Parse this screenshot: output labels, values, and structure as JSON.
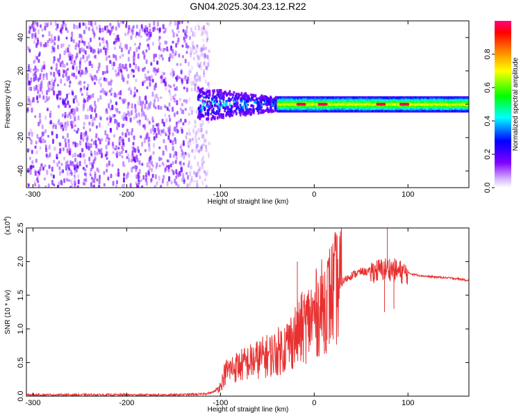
{
  "title": "GN04.2025.304.23.12.R22",
  "chart_data": [
    {
      "type": "heatmap",
      "name": "spectrogram",
      "xlabel": "Height of straight line (km)",
      "ylabel": "Frequency (Hz)",
      "xlim": [
        -307,
        165
      ],
      "ylim": [
        -50,
        50
      ],
      "xticks": [
        -300,
        -200,
        -100,
        0,
        100
      ],
      "xtick_labels": [
        "-300",
        "-200",
        "-100",
        "0",
        "100"
      ],
      "yticks": [
        -40,
        -20,
        0,
        20,
        40
      ],
      "ytick_labels": [
        "-40",
        "-20",
        "0",
        "20",
        "40"
      ],
      "colorbar": {
        "label": "Normalized spectral amplitude",
        "range": [
          0,
          1
        ],
        "ticks": [
          0.0,
          0.2,
          0.4,
          0.6,
          0.8
        ],
        "tick_labels": [
          "0.0",
          "0.2",
          "0.4",
          "0.6",
          "0.8"
        ],
        "colormap": [
          "#ffffff",
          "#8000ff",
          "#0000ff",
          "#00ffff",
          "#00ff00",
          "#ffff00",
          "#ff8000",
          "#ff0000",
          "#ff0080"
        ]
      },
      "regions": [
        {
          "description": "broadband noise",
          "x_range": [
            -307,
            -125
          ],
          "freq_range": [
            -50,
            50
          ],
          "amplitude": 0.05
        },
        {
          "description": "transition noise",
          "x_range": [
            -125,
            -40
          ],
          "freq_range": [
            -10,
            10
          ],
          "amplitude": 0.25
        },
        {
          "description": "narrow band",
          "x_range": [
            -40,
            165
          ],
          "freq_range": [
            -3,
            3
          ],
          "amplitude": 0.6
        },
        {
          "description": "peaks",
          "x_points": [
            -15,
            8,
            70,
            95
          ],
          "amplitude": 0.95
        }
      ]
    },
    {
      "type": "line",
      "name": "snr",
      "xlabel": "Height of straight line (km)",
      "ylabel": "SNR (10 * v/v)",
      "scale_label": "(x10",
      "scale_exp": "4",
      "scale_close": ")",
      "xlim": [
        -307,
        165
      ],
      "ylim": [
        0,
        2.5
      ],
      "xticks": [
        -300,
        -200,
        -100,
        0,
        100
      ],
      "xtick_labels": [
        "-300",
        "-200",
        "-100",
        "0",
        "100"
      ],
      "yticks": [
        0.0,
        0.5,
        1.0,
        1.5,
        2.0,
        2.5
      ],
      "ytick_labels": [
        "0.0",
        "0.5",
        "1.0",
        "1.5",
        "2.0",
        "2.5"
      ],
      "color": "#e83030",
      "x": [
        -307,
        -250,
        -200,
        -150,
        -120,
        -110,
        -105,
        -100,
        -95,
        -90,
        -80,
        -70,
        -60,
        -50,
        -40,
        -30,
        -20,
        -10,
        0,
        10,
        20,
        30,
        40,
        50,
        60,
        70,
        80,
        90,
        100,
        110,
        120,
        130,
        140,
        150,
        165
      ],
      "y": [
        0.02,
        0.02,
        0.02,
        0.02,
        0.03,
        0.05,
        0.08,
        0.15,
        0.35,
        0.4,
        0.45,
        0.5,
        0.55,
        0.6,
        0.65,
        0.75,
        0.9,
        1.05,
        1.2,
        1.35,
        1.55,
        1.7,
        1.8,
        1.85,
        1.85,
        1.87,
        1.9,
        1.85,
        1.83,
        1.8,
        1.78,
        1.77,
        1.76,
        1.75,
        1.72
      ],
      "spikes": [
        {
          "x": -18,
          "y": 2.0
        },
        {
          "x": 78,
          "y": 2.5
        },
        {
          "x": 75,
          "y": 1.25
        },
        {
          "x": 85,
          "y": 1.3
        }
      ]
    }
  ]
}
